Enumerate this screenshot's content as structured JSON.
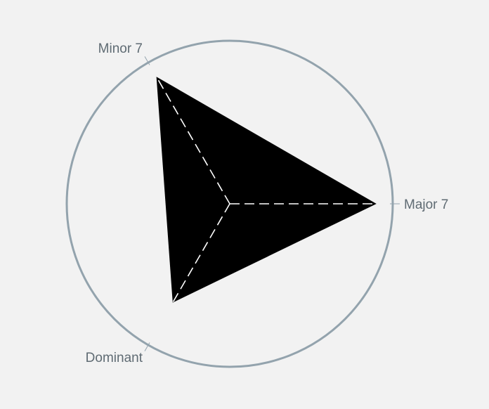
{
  "chart_data": {
    "type": "radar",
    "categories": [
      "Major 7",
      "Minor 7",
      "Dominant"
    ],
    "values": [
      0.9,
      0.9,
      0.7
    ],
    "range": [
      0,
      1
    ],
    "grid": false,
    "colors": {
      "background": "#f2f2f2",
      "outer_circle": "#93a3ad",
      "fill": "#000000",
      "spokes": "#ffffff",
      "label_text": "#5f6b73"
    }
  }
}
